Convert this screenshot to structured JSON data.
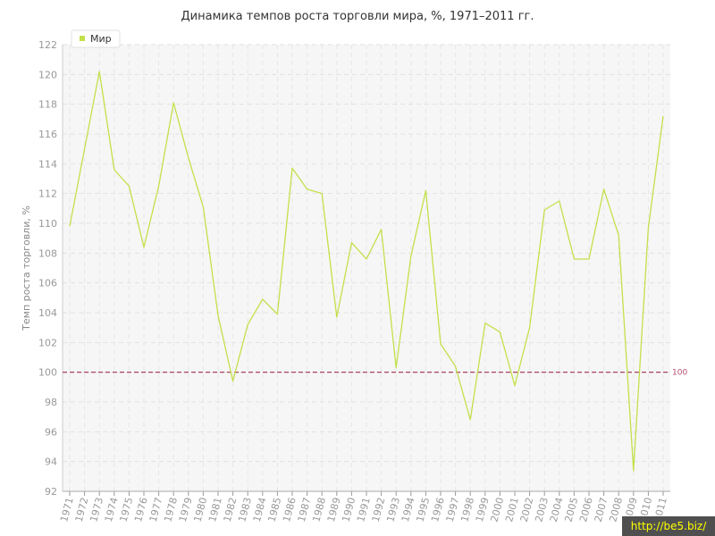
{
  "chart_data": {
    "type": "line",
    "title": "Динамика темпов роста торговли мира, %, 1971–2011 гг.",
    "ylabel": "Темп роста торговли, %",
    "xlabel": "",
    "ylim": [
      92,
      122
    ],
    "yticks": [
      92,
      94,
      96,
      98,
      100,
      102,
      104,
      106,
      108,
      110,
      112,
      114,
      116,
      118,
      120,
      122
    ],
    "categories": [
      "1971",
      "1972",
      "1973",
      "1974",
      "1975",
      "1976",
      "1977",
      "1978",
      "1979",
      "1980",
      "1981",
      "1982",
      "1983",
      "1984",
      "1985",
      "1986",
      "1987",
      "1988",
      "1989",
      "1990",
      "1991",
      "1992",
      "1993",
      "1994",
      "1995",
      "1996",
      "1997",
      "1998",
      "1999",
      "2000",
      "2001",
      "2002",
      "2003",
      "2004",
      "2005",
      "2006",
      "2007",
      "2008",
      "2009",
      "2010",
      "2011"
    ],
    "series": [
      {
        "name": "Мир",
        "color": "#c3e04a",
        "values": [
          109.8,
          115.0,
          120.2,
          113.6,
          112.5,
          108.4,
          112.5,
          118.1,
          114.4,
          111.1,
          103.8,
          99.4,
          103.2,
          104.9,
          103.9,
          113.7,
          112.3,
          112.0,
          103.7,
          108.7,
          107.6,
          109.6,
          100.3,
          107.8,
          112.2,
          101.9,
          100.4,
          96.8,
          103.3,
          102.7,
          99.1,
          103.0,
          110.9,
          111.5,
          107.6,
          107.6,
          112.3,
          109.2,
          93.4,
          109.7,
          117.2
        ]
      }
    ],
    "reference_line": {
      "value": 100,
      "label": "100",
      "color": "#a03050"
    },
    "legend": {
      "position": "top-left",
      "items": [
        "Мир"
      ]
    },
    "grid": true
  },
  "watermark": "http://be5.biz/"
}
